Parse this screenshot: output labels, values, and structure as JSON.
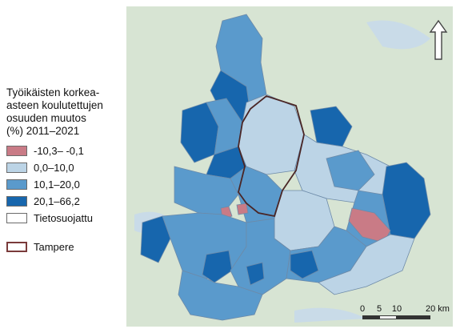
{
  "legend": {
    "title_lines": [
      "Työikäisten korkea-",
      "asteen koulutettujen",
      "osuuden muutos",
      "(%) 2011–2021"
    ],
    "items": [
      {
        "label": "-10,3– -0,1",
        "color": "#c97b86"
      },
      {
        "label": "0,0–10,0",
        "color": "#bcd4e6"
      },
      {
        "label": "10,1–20,0",
        "color": "#5a9acc"
      },
      {
        "label": "20,1–66,2",
        "color": "#1766ad"
      },
      {
        "label": "Tietosuojattu",
        "color": "#ffffff"
      }
    ],
    "boundary": {
      "label": "Tampere",
      "color": "#7a3b3b"
    }
  },
  "scale": {
    "ticks": [
      "0",
      "5",
      "10",
      "20"
    ],
    "unit": "km"
  },
  "colors": {
    "background_land": "#d7e4d3",
    "water": "#c9dbe8",
    "north_arrow": "#444444"
  }
}
